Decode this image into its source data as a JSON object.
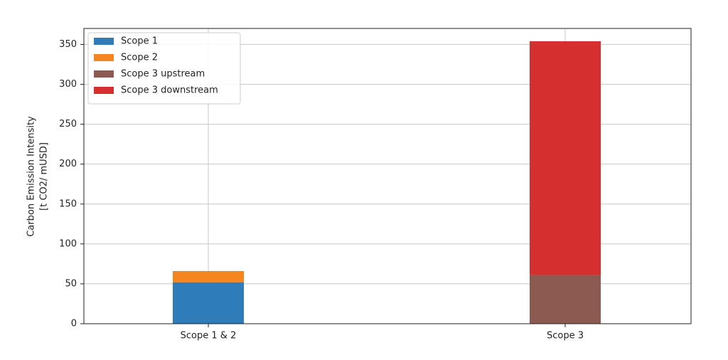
{
  "chart_data": {
    "type": "bar",
    "stacked": true,
    "y_label": [
      "Carbon Emission Intensity",
      "[t CO2/ mUSD]"
    ],
    "categories": [
      "Scope 1 & 2",
      "Scope 3"
    ],
    "series": [
      {
        "name": "Scope 1",
        "color": "#2e7dba",
        "values": [
          52,
          null
        ]
      },
      {
        "name": "Scope 2",
        "color": "#f5861f",
        "values": [
          14,
          null
        ]
      },
      {
        "name": "Scope 3 upstream",
        "color": "#8c5a51",
        "values": [
          null,
          61
        ]
      },
      {
        "name": "Scope 3 downstream",
        "color": "#d62f2f",
        "values": [
          null,
          293
        ]
      }
    ],
    "ylim": [
      0,
      370
    ],
    "yticks": [
      0,
      50,
      100,
      150,
      200,
      250,
      300,
      350
    ],
    "grid": true,
    "legend": "upper-left"
  }
}
